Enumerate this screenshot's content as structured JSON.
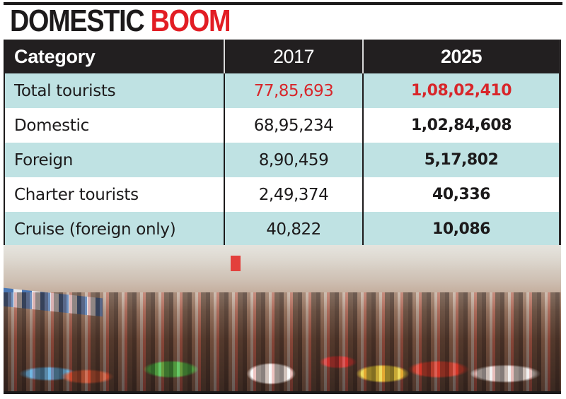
{
  "title": {
    "part1": "DOMESTIC",
    "part2": "BOOM",
    "colors": {
      "part1": "#1c1a1b",
      "part2": "#e21d24"
    }
  },
  "table": {
    "headers": [
      "Category",
      "2017",
      "2025"
    ],
    "rows": [
      {
        "category": "Total tourists",
        "y2017": "77,85,693",
        "y2025": "1,08,02,410",
        "highlight_color": "#d8262a"
      },
      {
        "category": "Domestic",
        "y2017": "68,95,234",
        "y2025": "1,02,84,608"
      },
      {
        "category": "Foreign",
        "y2017": "8,90,459",
        "y2025": "5,17,802"
      },
      {
        "category": "Charter tourists",
        "y2017": "2,49,374",
        "y2025": "40,336"
      },
      {
        "category": "Cruise (foreign only)",
        "y2017": "40,822",
        "y2025": "10,086"
      }
    ],
    "colors": {
      "header_bg": "#221f20",
      "teal_row": "#bfe2e3",
      "white_row": "#ffffff"
    }
  },
  "photo": {
    "description": "crowd of tourists on a beach"
  }
}
